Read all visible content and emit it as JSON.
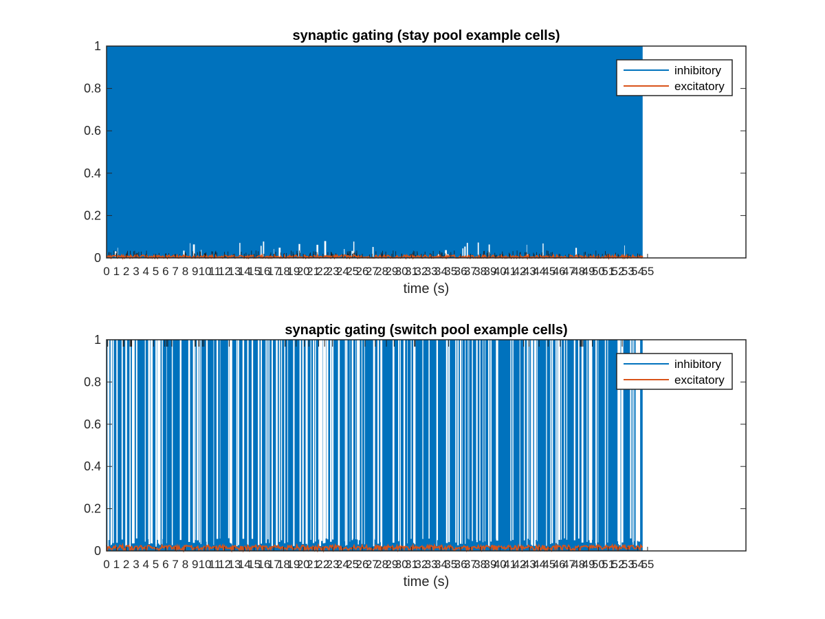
{
  "chart_data": [
    {
      "type": "line",
      "title": "synaptic gating (stay pool example cells)",
      "xlabel": "time (s)",
      "ylabel": "",
      "ylim": [
        0,
        1
      ],
      "xlim": [
        0,
        65
      ],
      "data_extent_x": [
        0,
        54.5
      ],
      "yticks": [
        "0",
        "0.2",
        "0.4",
        "0.6",
        "0.8",
        "1"
      ],
      "xticks": [
        "0",
        "1",
        "2",
        "3",
        "4",
        "5",
        "6",
        "7",
        "8",
        "9",
        "10",
        "11",
        "12",
        "13",
        "14",
        "15",
        "16",
        "17",
        "18",
        "19",
        "20",
        "21",
        "22",
        "23",
        "24",
        "25",
        "26",
        "27",
        "28",
        "29",
        "30",
        "31",
        "32",
        "33",
        "34",
        "35",
        "36",
        "37",
        "38",
        "39",
        "40",
        "41",
        "42",
        "43",
        "44",
        "45",
        "46",
        "47",
        "48",
        "49",
        "50",
        "51",
        "52",
        "53",
        "54",
        "55"
      ],
      "legend_position": "top-right",
      "series": [
        {
          "name": "inhibitory",
          "color": "#0072bd",
          "pattern": "dense-oscillation",
          "min": 0,
          "max": 1,
          "gap_density": 0.02
        },
        {
          "name": "excitatory",
          "color": "#d95319",
          "pattern": "noise",
          "mean": 0.005,
          "amplitude": 0.008
        }
      ]
    },
    {
      "type": "line",
      "title": "synaptic gating (switch pool example cells)",
      "xlabel": "time (s)",
      "ylabel": "",
      "ylim": [
        0,
        1
      ],
      "xlim": [
        0,
        65
      ],
      "data_extent_x": [
        0,
        54.5
      ],
      "yticks": [
        "0",
        "0.2",
        "0.4",
        "0.6",
        "0.8",
        "1"
      ],
      "xticks": [
        "0",
        "1",
        "2",
        "3",
        "4",
        "5",
        "6",
        "7",
        "8",
        "9",
        "10",
        "11",
        "12",
        "13",
        "14",
        "15",
        "16",
        "17",
        "18",
        "19",
        "20",
        "21",
        "22",
        "23",
        "24",
        "25",
        "26",
        "27",
        "28",
        "29",
        "30",
        "31",
        "32",
        "33",
        "34",
        "35",
        "36",
        "37",
        "38",
        "39",
        "40",
        "41",
        "42",
        "43",
        "44",
        "45",
        "46",
        "47",
        "48",
        "49",
        "50",
        "51",
        "52",
        "53",
        "54",
        "55"
      ],
      "legend_position": "top-right",
      "series": [
        {
          "name": "inhibitory",
          "color": "#0072bd",
          "pattern": "dense-oscillation",
          "min": 0,
          "max": 1,
          "gap_density": 0.12
        },
        {
          "name": "excitatory",
          "color": "#d95319",
          "pattern": "noise",
          "mean": 0.015,
          "amplitude": 0.012
        }
      ]
    }
  ]
}
